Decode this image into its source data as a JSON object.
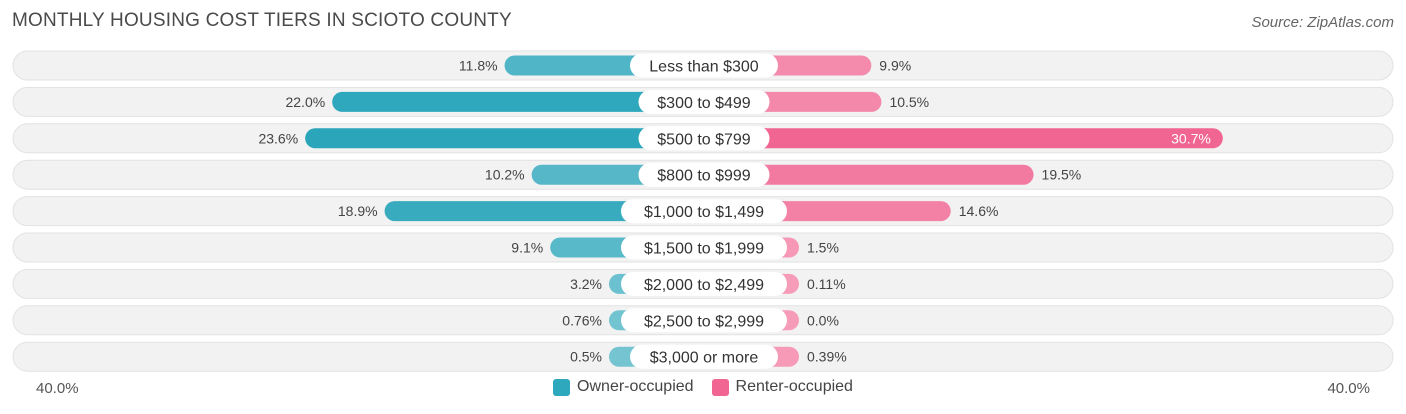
{
  "title": "MONTHLY HOUSING COST TIERS IN SCIOTO COUNTY",
  "source": "Source: ZipAtlas.com",
  "axis": {
    "left_label": "40.0%",
    "right_label": "40.0%"
  },
  "legend": [
    {
      "name": "Owner-occupied",
      "color": "#2ea8bd"
    },
    {
      "name": "Renter-occupied",
      "color": "#f06592"
    }
  ],
  "chart_data": {
    "type": "bar",
    "orientation": "horizontal-diverging",
    "categories": [
      "Less than $300",
      "$300 to $499",
      "$500 to $799",
      "$800 to $999",
      "$1,000 to $1,499",
      "$1,500 to $1,999",
      "$2,000 to $2,499",
      "$2,500 to $2,999",
      "$3,000 or more"
    ],
    "series": [
      {
        "name": "Owner-occupied",
        "values": [
          11.8,
          22.0,
          23.6,
          10.2,
          18.9,
          9.1,
          3.2,
          0.76,
          0.5
        ],
        "labels": [
          "11.8%",
          "22.0%",
          "23.6%",
          "10.2%",
          "18.9%",
          "9.1%",
          "3.2%",
          "0.76%",
          "0.5%"
        ]
      },
      {
        "name": "Renter-occupied",
        "values": [
          9.9,
          10.5,
          30.7,
          19.5,
          14.6,
          1.5,
          0.11,
          0.0,
          0.39
        ],
        "labels": [
          "9.9%",
          "10.5%",
          "30.7%",
          "19.5%",
          "14.6%",
          "1.5%",
          "0.11%",
          "0.0%",
          "0.39%"
        ]
      }
    ],
    "xlim": [
      -40,
      40
    ],
    "legend_position": "bottom-center"
  }
}
